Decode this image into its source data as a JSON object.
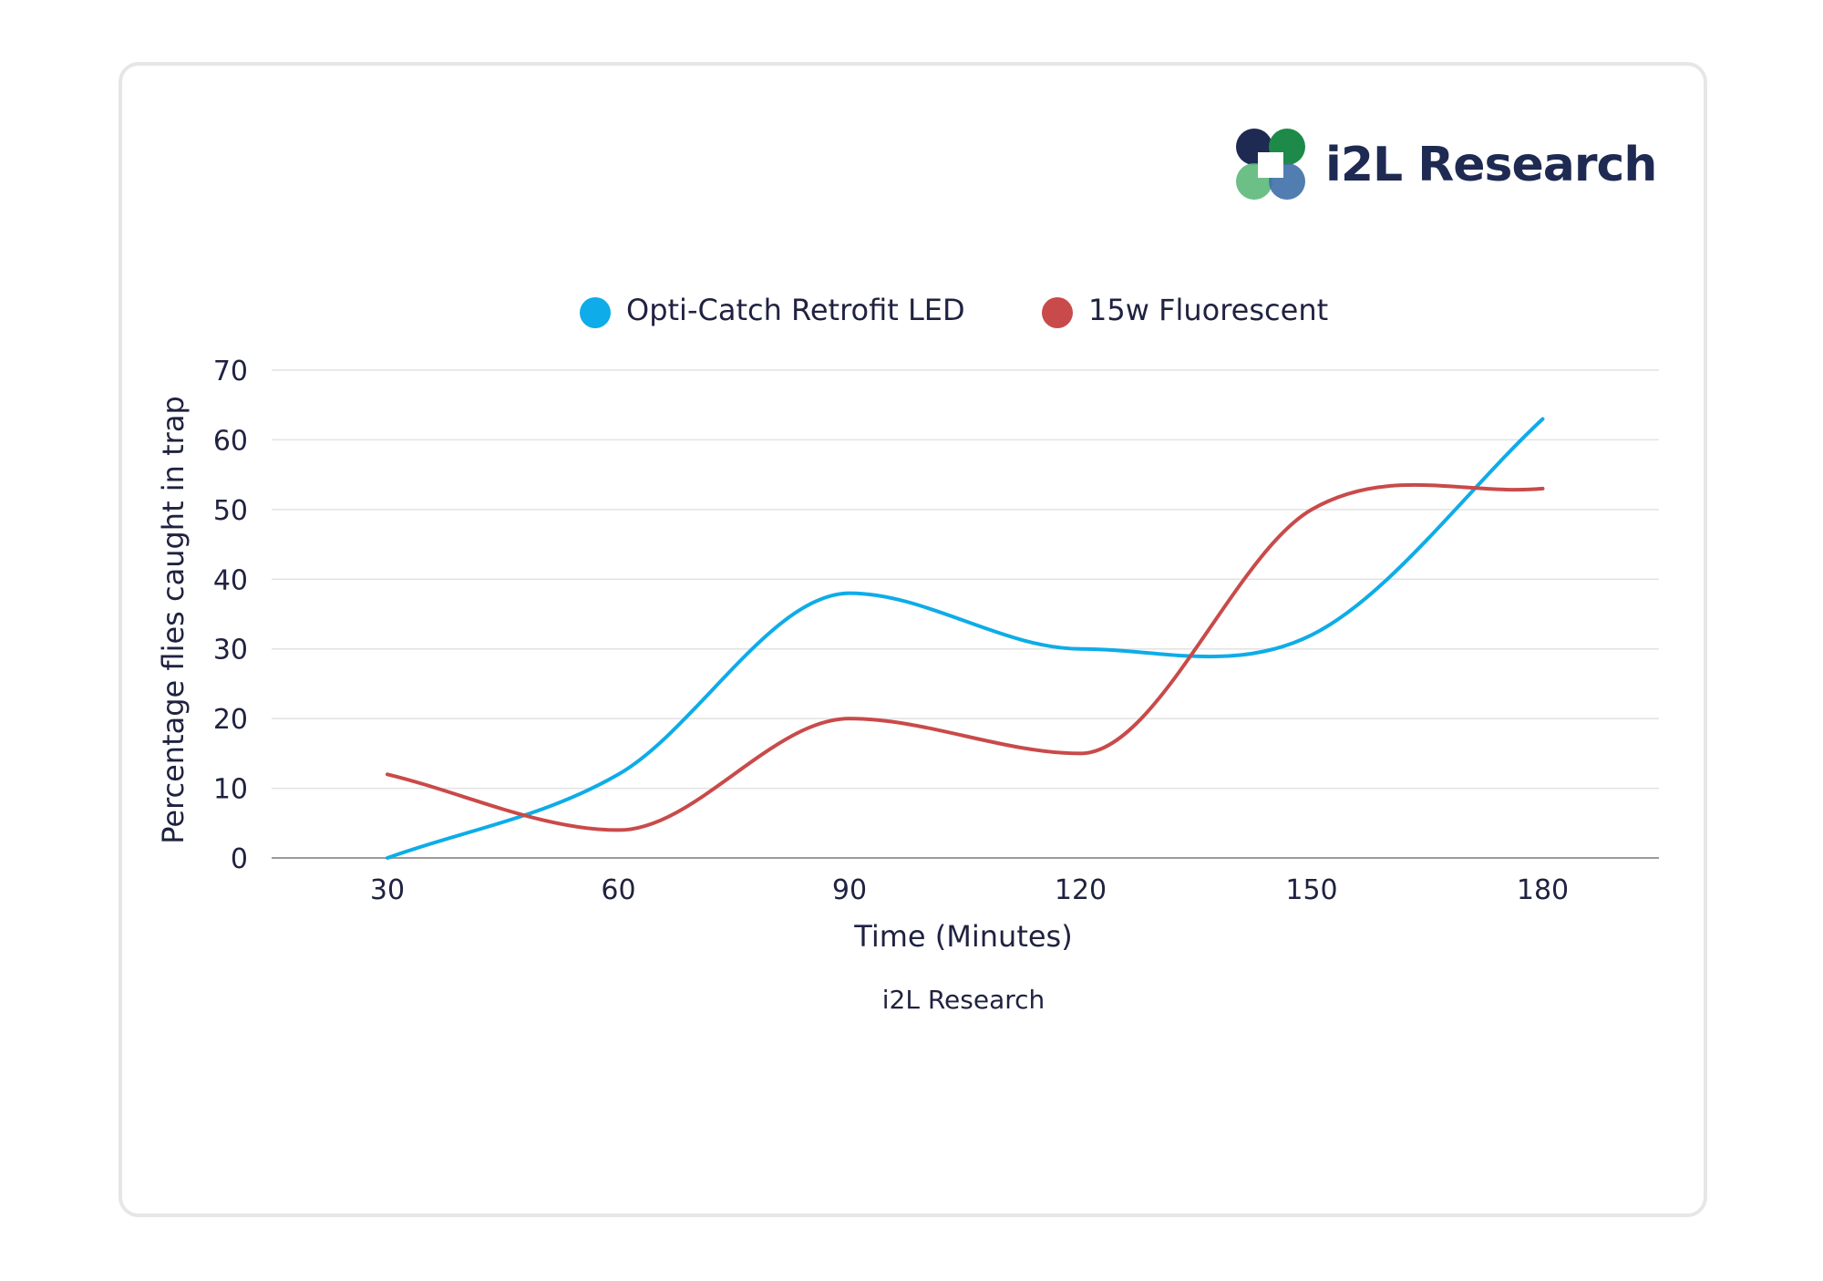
{
  "brand": {
    "name": "i2L Research"
  },
  "chart_data": {
    "type": "line",
    "categories": [
      "30",
      "60",
      "90",
      "120",
      "150",
      "180"
    ],
    "series": [
      {
        "name": "Opti-Catch Retrofit LED",
        "color": "#0eace8",
        "values": [
          0,
          12,
          38,
          30,
          32,
          63
        ]
      },
      {
        "name": "15w Fluorescent",
        "color": "#c94a4a",
        "values": [
          12,
          4,
          20,
          15,
          50,
          53
        ]
      }
    ],
    "xlabel": "Time (Minutes)",
    "ylabel": "Percentage flies caught in trap",
    "ylim": [
      0,
      70
    ],
    "yticks": [
      0,
      10,
      20,
      30,
      40,
      50,
      60,
      70
    ],
    "grid": true,
    "smooth": true,
    "legend_position": "top",
    "caption": "i2L Research"
  }
}
